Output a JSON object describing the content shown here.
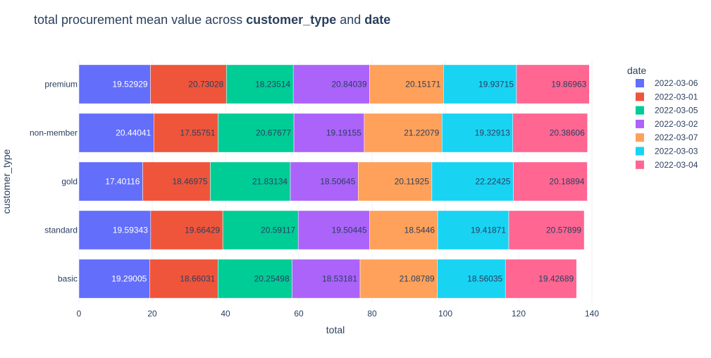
{
  "chart_data": {
    "type": "bar",
    "orientation": "horizontal",
    "barmode": "stack",
    "title": {
      "prefix": "total procurement mean value across ",
      "bold1": "customer_type",
      "middle": " and ",
      "bold2": "date"
    },
    "xlabel": "total",
    "ylabel": "customer_type",
    "xlim": [
      0,
      140
    ],
    "xticks": [
      0,
      20,
      40,
      60,
      80,
      100,
      120,
      140
    ],
    "categories": [
      "premium",
      "non-member",
      "gold",
      "standard",
      "basic"
    ],
    "legend_title": "date",
    "legend_position": "right",
    "series": [
      {
        "name": "2022-03-06",
        "color": "#636efa",
        "text_color": "#ffffff",
        "values": [
          19.52929,
          20.44041,
          17.40116,
          19.59343,
          19.29005
        ],
        "labels": [
          "19.52929",
          "20.44041",
          "17.40116",
          "19.59343",
          "19.29005"
        ]
      },
      {
        "name": "2022-03-01",
        "color": "#EF553B",
        "text_color": "#2a3f5f",
        "values": [
          20.73028,
          17.55751,
          18.46975,
          19.66429,
          18.66031
        ],
        "labels": [
          "20.73028",
          "17.55751",
          "18.46975",
          "19.66429",
          "18.66031"
        ]
      },
      {
        "name": "2022-03-05",
        "color": "#00cc96",
        "text_color": "#2a3f5f",
        "values": [
          18.23514,
          20.67677,
          21.83134,
          20.59117,
          20.25498
        ],
        "labels": [
          "18.23514",
          "20.67677",
          "21.83134",
          "20.59117",
          "20.25498"
        ]
      },
      {
        "name": "2022-03-02",
        "color": "#ab63fa",
        "text_color": "#2a3f5f",
        "values": [
          20.84039,
          19.19155,
          18.50645,
          19.50445,
          18.53181
        ],
        "labels": [
          "20.84039",
          "19.19155",
          "18.50645",
          "19.50445",
          "18.53181"
        ]
      },
      {
        "name": "2022-03-07",
        "color": "#FFA15A",
        "text_color": "#2a3f5f",
        "values": [
          20.15171,
          21.22079,
          20.11925,
          18.5446,
          21.08789
        ],
        "labels": [
          "20.15171",
          "21.22079",
          "20.11925",
          "18.5446",
          "21.08789"
        ]
      },
      {
        "name": "2022-03-03",
        "color": "#19d3f3",
        "text_color": "#2a3f5f",
        "values": [
          19.93715,
          19.32913,
          22.22425,
          19.41871,
          18.56035
        ],
        "labels": [
          "19.93715",
          "19.32913",
          "22.22425",
          "19.41871",
          "18.56035"
        ]
      },
      {
        "name": "2022-03-04",
        "color": "#FF6692",
        "text_color": "#2a3f5f",
        "values": [
          19.86963,
          20.38606,
          20.18894,
          20.57899,
          19.42689
        ],
        "labels": [
          "19.86963",
          "20.38606",
          "20.18894",
          "20.57899",
          "19.42689"
        ]
      }
    ]
  }
}
